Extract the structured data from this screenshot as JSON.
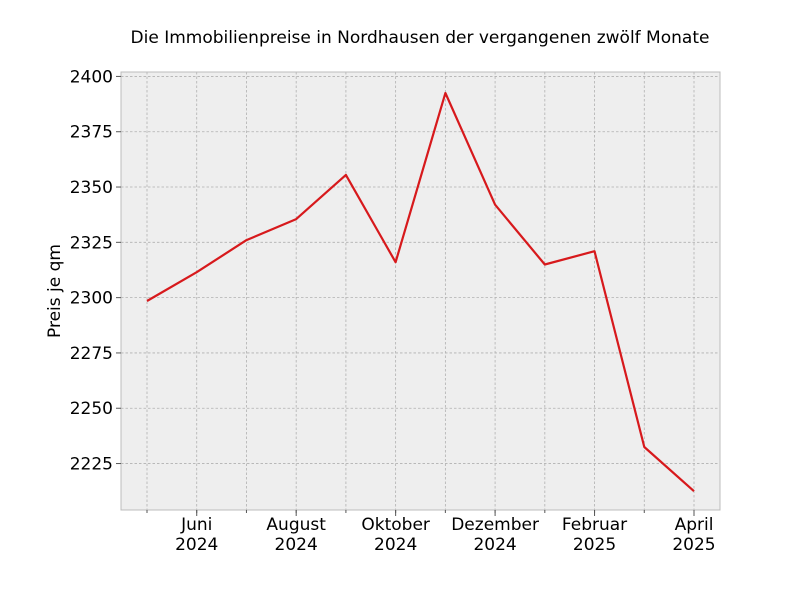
{
  "chart_data": {
    "type": "line",
    "title": "Die Immobilienpreise in Nordhausen der vergangenen zwölf Monate",
    "xlabel": "",
    "ylabel": "Preis je qm",
    "x": [
      "2024-05",
      "2024-06",
      "2024-07",
      "2024-08",
      "2024-09",
      "2024-10",
      "2024-11",
      "2024-12",
      "2025-01",
      "2025-02",
      "2025-03",
      "2025-04"
    ],
    "x_tick_labels": [
      {
        "month": "Juni",
        "year": "2024",
        "index": 1
      },
      {
        "month": "August",
        "year": "2024",
        "index": 3
      },
      {
        "month": "Oktober",
        "year": "2024",
        "index": 5
      },
      {
        "month": "Dezember",
        "year": "2024",
        "index": 7
      },
      {
        "month": "Februar",
        "year": "2025",
        "index": 9
      },
      {
        "month": "April",
        "year": "2025",
        "index": 11
      }
    ],
    "series": [
      {
        "values": [
          2298.5,
          2311.5,
          2326,
          2335.5,
          2355.5,
          2316,
          2392.5,
          2342,
          2315,
          2321,
          2232.5,
          2212.5
        ],
        "color": "#d7191c"
      }
    ],
    "yticks": [
      2225,
      2250,
      2275,
      2300,
      2325,
      2350,
      2375,
      2400
    ],
    "ylim": [
      2204,
      2402
    ],
    "grid": true,
    "background": "#eeeeee"
  }
}
